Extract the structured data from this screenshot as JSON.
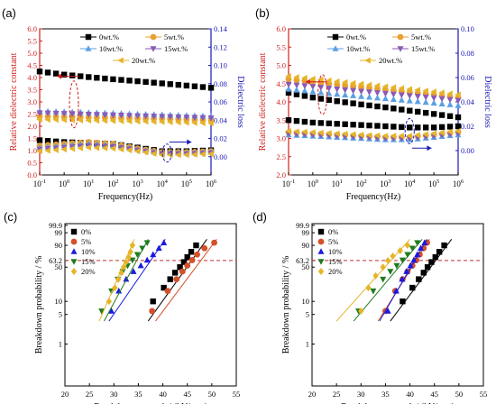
{
  "figure": {
    "panel_labels": [
      "(a)",
      "(b)",
      "(c)",
      "(d)"
    ]
  },
  "colors": {
    "s0": "#000000",
    "s5": "#e8a030",
    "s10": "#5aa0e6",
    "s15": "#8a5ab4",
    "s20": "#e6b428",
    "w5": "#d4502a",
    "w10": "#1a1ae0",
    "w15": "#1f7a1f",
    "w20": "#e6b428",
    "left_axis": "#d02020",
    "right_axis": "#1a1ab4",
    "ref_line": "#c03030"
  },
  "chart_data": [
    {
      "panel": "(a)",
      "type": "line",
      "x_scale": "log",
      "xlim": [
        0.1,
        1000000
      ],
      "x_ticks": [
        "10-1",
        "100",
        "101",
        "102",
        "103",
        "104",
        "105",
        "106"
      ],
      "xlabel": "Frequency(Hz)",
      "ylabel": "Relative dielectric constant",
      "ylim": [
        0.0,
        6.0
      ],
      "y_ticks": [
        "0.0",
        "0.5",
        "1.0",
        "1.5",
        "2.0",
        "2.5",
        "3.0",
        "3.5",
        "4.0",
        "4.5",
        "5.0",
        "5.5",
        "6.0"
      ],
      "y2label": "Dielectric loss",
      "y2lim": [
        -0.02,
        0.14
      ],
      "y2_ticks": [
        "0.00",
        "0.02",
        "0.04",
        "0.06",
        "0.08",
        "0.10",
        "0.12",
        "0.14"
      ],
      "legend": [
        "0wt.%",
        "5wt.%",
        "10wt.%",
        "15wt.%",
        "20wt.%"
      ],
      "legend_position": "top-right",
      "x_decades": [
        -1,
        0,
        1,
        2,
        3,
        4,
        5,
        6
      ],
      "constant": [
        {
          "name": "0wt.%",
          "values": [
            4.25,
            4.12,
            4.02,
            3.93,
            3.85,
            3.76,
            3.67,
            3.58
          ]
        },
        {
          "name": "5wt.%",
          "values": [
            2.4,
            2.38,
            2.36,
            2.34,
            2.32,
            2.3,
            2.27,
            2.24
          ]
        },
        {
          "name": "10wt.%",
          "values": [
            2.62,
            2.59,
            2.56,
            2.53,
            2.5,
            2.47,
            2.44,
            2.41
          ]
        },
        {
          "name": "15wt.%",
          "values": [
            2.55,
            2.52,
            2.49,
            2.46,
            2.43,
            2.4,
            2.37,
            2.34
          ]
        },
        {
          "name": "20wt.%",
          "values": [
            2.28,
            2.26,
            2.24,
            2.22,
            2.2,
            2.18,
            2.15,
            2.12
          ]
        }
      ],
      "loss": [
        {
          "name": "0wt.%",
          "values": [
            0.018,
            0.016,
            0.015,
            0.014,
            0.01,
            0.006,
            0.006,
            0.007
          ]
        },
        {
          "name": "5wt.%",
          "values": [
            0.012,
            0.014,
            0.016,
            0.014,
            0.009,
            0.005,
            0.005,
            0.006
          ]
        },
        {
          "name": "10wt.%",
          "values": [
            0.01,
            0.012,
            0.014,
            0.012,
            0.008,
            0.004,
            0.004,
            0.005
          ]
        },
        {
          "name": "15wt.%",
          "values": [
            0.008,
            0.01,
            0.012,
            0.011,
            0.007,
            0.003,
            0.003,
            0.004
          ]
        },
        {
          "name": "20wt.%",
          "values": [
            0.006,
            0.008,
            0.01,
            0.009,
            0.006,
            0.002,
            0.002,
            0.003
          ]
        }
      ]
    },
    {
      "panel": "(b)",
      "type": "line",
      "x_scale": "log",
      "xlim": [
        0.1,
        1000000
      ],
      "x_ticks": [
        "10-1",
        "100",
        "101",
        "102",
        "103",
        "104",
        "105",
        "106"
      ],
      "xlabel": "Frequency(Hz)",
      "ylabel": "Relative dielectric constant",
      "ylim": [
        2.0,
        6.0
      ],
      "y_ticks": [
        "2.0",
        "2.5",
        "3.0",
        "3.5",
        "4.0",
        "4.5",
        "5.0",
        "5.5",
        "6.0"
      ],
      "y2label": "Dielectric loss",
      "y2lim": [
        -0.02,
        0.1
      ],
      "y2_ticks": [
        "0.00",
        "0.02",
        "0.04",
        "0.06",
        "0.08",
        "0.10"
      ],
      "legend": [
        "0wt.%",
        "5wt.%",
        "10wt.%",
        "15wt.%",
        "20wt.%"
      ],
      "legend_position": "top-right",
      "x_decades": [
        -1,
        0,
        1,
        2,
        3,
        4,
        5,
        6
      ],
      "constant": [
        {
          "name": "0wt.%",
          "values": [
            4.25,
            4.12,
            4.02,
            3.93,
            3.85,
            3.76,
            3.67,
            3.58
          ]
        },
        {
          "name": "5wt.%",
          "values": [
            4.62,
            4.55,
            4.48,
            4.41,
            4.34,
            4.27,
            4.2,
            4.12
          ]
        },
        {
          "name": "10wt.%",
          "values": [
            4.35,
            4.28,
            4.21,
            4.15,
            4.09,
            4.03,
            3.97,
            3.9
          ]
        },
        {
          "name": "15wt.%",
          "values": [
            4.48,
            4.42,
            4.35,
            4.29,
            4.23,
            4.17,
            4.11,
            4.04
          ]
        },
        {
          "name": "20wt.%",
          "values": [
            4.7,
            4.63,
            4.56,
            4.49,
            4.42,
            4.35,
            4.28,
            4.2
          ]
        }
      ],
      "loss": [
        {
          "name": "0wt.%",
          "values": [
            0.025,
            0.023,
            0.022,
            0.021,
            0.02,
            0.019,
            0.019,
            0.02
          ]
        },
        {
          "name": "5wt.%",
          "values": [
            0.015,
            0.014,
            0.013,
            0.012,
            0.011,
            0.011,
            0.013,
            0.015
          ]
        },
        {
          "name": "10wt.%",
          "values": [
            0.013,
            0.012,
            0.011,
            0.01,
            0.009,
            0.009,
            0.011,
            0.013
          ]
        },
        {
          "name": "15wt.%",
          "values": [
            0.014,
            0.013,
            0.012,
            0.011,
            0.01,
            0.01,
            0.012,
            0.014
          ]
        },
        {
          "name": "20wt.%",
          "values": [
            0.016,
            0.015,
            0.014,
            0.013,
            0.012,
            0.012,
            0.014,
            0.016
          ]
        }
      ]
    },
    {
      "panel": "(c)",
      "type": "scatter",
      "xlabel": "Breakdown strength / (kV/mm)",
      "ylabel": "Breakdown probability / %",
      "xlim": [
        20,
        55
      ],
      "x_ticks": [
        "20",
        "25",
        "30",
        "35",
        "40",
        "45",
        "50",
        "55"
      ],
      "y_scale": "weibull",
      "y_ticks": [
        "1",
        "5",
        "10",
        "50",
        "63.2",
        "90",
        "99",
        "99.9"
      ],
      "reference_line": 63.2,
      "legend": [
        "0%",
        "5%",
        "10%",
        "15%",
        "20%"
      ],
      "legend_position": "top-left",
      "series": [
        {
          "name": "0%",
          "points": [
            [
              38.0,
              10
            ],
            [
              40.2,
              20
            ],
            [
              41.5,
              30
            ],
            [
              42.5,
              40
            ],
            [
              43.5,
              50
            ],
            [
              44.3,
              60
            ],
            [
              45.0,
              70
            ],
            [
              45.8,
              80
            ],
            [
              46.8,
              90
            ]
          ],
          "fit": [
            [
              37.0,
              3.5
            ],
            [
              49.0,
              96
            ]
          ]
        },
        {
          "name": "5%",
          "points": [
            [
              37.8,
              6
            ],
            [
              41.0,
              17
            ],
            [
              42.8,
              30
            ],
            [
              44.0,
              42
            ],
            [
              45.0,
              53
            ],
            [
              46.0,
              64
            ],
            [
              47.0,
              75
            ],
            [
              48.5,
              86
            ],
            [
              50.5,
              93
            ]
          ],
          "fit": [
            [
              38.5,
              3.5
            ],
            [
              51.0,
              96
            ]
          ]
        },
        {
          "name": "10%",
          "points": [
            [
              29.5,
              6
            ],
            [
              31.0,
              17
            ],
            [
              32.5,
              30
            ],
            [
              34.0,
              42
            ],
            [
              35.5,
              53
            ],
            [
              36.8,
              64
            ],
            [
              38.0,
              75
            ],
            [
              39.2,
              86
            ],
            [
              40.2,
              93
            ]
          ],
          "fit": [
            [
              29.0,
              3.5
            ],
            [
              40.5,
              96
            ]
          ]
        },
        {
          "name": "15%",
          "points": [
            [
              27.5,
              6
            ],
            [
              29.5,
              17
            ],
            [
              30.8,
              30
            ],
            [
              31.8,
              42
            ],
            [
              32.8,
              53
            ],
            [
              33.8,
              64
            ],
            [
              34.8,
              75
            ],
            [
              35.8,
              86
            ],
            [
              36.8,
              93
            ]
          ],
          "fit": [
            [
              28.0,
              3.5
            ],
            [
              37.0,
              96
            ]
          ]
        },
        {
          "name": "20%",
          "points": [
            [
              29.0,
              10
            ],
            [
              30.2,
              20
            ],
            [
              30.9,
              30
            ],
            [
              31.5,
              40
            ],
            [
              32.0,
              50
            ],
            [
              32.5,
              60
            ],
            [
              33.0,
              70
            ],
            [
              33.4,
              80
            ],
            [
              33.8,
              90
            ]
          ],
          "fit": [
            [
              27.0,
              3.5
            ],
            [
              34.2,
              96
            ]
          ]
        }
      ]
    },
    {
      "panel": "(d)",
      "type": "scatter",
      "xlabel": "Breakdown strength / (kV/mm)",
      "ylabel": "Breakdown probability / %",
      "xlim": [
        20,
        55
      ],
      "x_ticks": [
        "20",
        "25",
        "30",
        "35",
        "40",
        "45",
        "50",
        "55"
      ],
      "y_scale": "weibull",
      "y_ticks": [
        "1",
        "5",
        "10",
        "50",
        "63.2",
        "90",
        "99",
        "99.9"
      ],
      "reference_line": 63.2,
      "legend": [
        "0%",
        "5%",
        "10%",
        "15%",
        "20%"
      ],
      "legend_position": "top-left",
      "series": [
        {
          "name": "0%",
          "points": [
            [
              38.5,
              10
            ],
            [
              40.5,
              20
            ],
            [
              41.8,
              30
            ],
            [
              42.8,
              40
            ],
            [
              43.6,
              50
            ],
            [
              44.4,
              60
            ],
            [
              45.2,
              70
            ],
            [
              46.0,
              80
            ],
            [
              47.0,
              90
            ]
          ],
          "fit": [
            [
              36.0,
              3.5
            ],
            [
              48.5,
              96
            ]
          ]
        },
        {
          "name": "5%",
          "points": [
            [
              35.0,
              6
            ],
            [
              37.0,
              17
            ],
            [
              38.5,
              30
            ],
            [
              39.5,
              42
            ],
            [
              40.5,
              53
            ],
            [
              41.3,
              64
            ],
            [
              42.0,
              75
            ],
            [
              42.8,
              86
            ],
            [
              43.5,
              93
            ]
          ],
          "fit": [
            [
              33.5,
              3.5
            ],
            [
              44.0,
              96
            ]
          ]
        },
        {
          "name": "10%",
          "points": [
            [
              35.5,
              6
            ],
            [
              37.2,
              17
            ],
            [
              38.4,
              30
            ],
            [
              39.3,
              42
            ],
            [
              40.1,
              53
            ],
            [
              40.8,
              64
            ],
            [
              41.5,
              75
            ],
            [
              42.2,
              86
            ],
            [
              43.0,
              93
            ]
          ],
          "fit": [
            [
              33.8,
              3.5
            ],
            [
              43.5,
              96
            ]
          ]
        },
        {
          "name": "15%",
          "points": [
            [
              29.5,
              6
            ],
            [
              32.5,
              17
            ],
            [
              34.5,
              30
            ],
            [
              36.0,
              42
            ],
            [
              37.3,
              53
            ],
            [
              38.5,
              64
            ],
            [
              39.5,
              75
            ],
            [
              40.5,
              86
            ],
            [
              41.5,
              93
            ]
          ],
          "fit": [
            [
              28.5,
              3.5
            ],
            [
              42.5,
              96
            ]
          ]
        },
        {
          "name": "20%",
          "points": [
            [
              30.0,
              6
            ],
            [
              31.5,
              20
            ],
            [
              33.0,
              35
            ],
            [
              34.5,
              50
            ],
            [
              35.5,
              63
            ],
            [
              36.5,
              72
            ],
            [
              38.0,
              82
            ],
            [
              39.5,
              90
            ]
          ],
          "fit": [
            [
              25.0,
              3.5
            ],
            [
              40.0,
              96
            ]
          ]
        }
      ]
    }
  ]
}
